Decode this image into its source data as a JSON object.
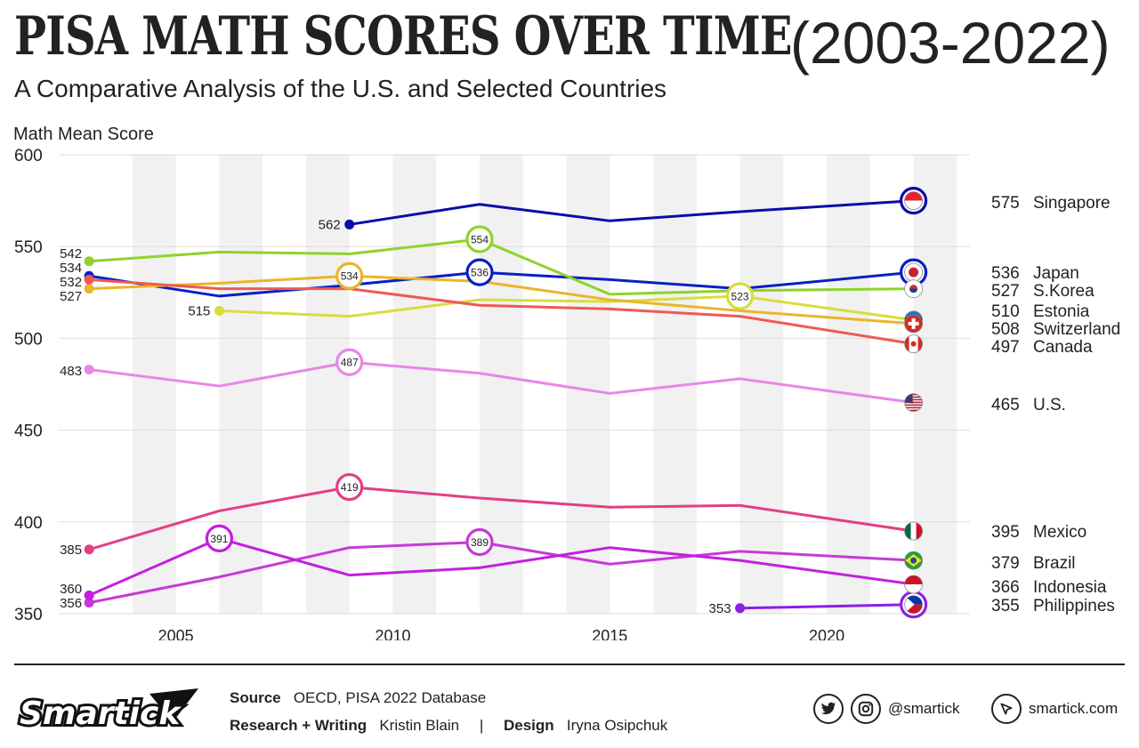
{
  "header": {
    "title": "PISA MATH SCORES OVER TIME",
    "title_years": "(2003-2022)",
    "subtitle": "A Comparative Analysis of the U.S. and Selected Countries"
  },
  "chart_data": {
    "type": "line",
    "ylabel": "Math Mean Score",
    "xlabel": "",
    "xlim": [
      2002.3,
      2023.3
    ],
    "ylim": [
      350,
      600
    ],
    "yticks": [
      350,
      400,
      450,
      500,
      550,
      600
    ],
    "xticks": [
      2005,
      2010,
      2015,
      2020
    ],
    "grid": true,
    "series": [
      {
        "name": "Singapore",
        "color": "#0c0ca8",
        "x": [
          2009,
          2012,
          2015,
          2018,
          2022
        ],
        "values": [
          562,
          573,
          564,
          569,
          575
        ],
        "start_label": "562",
        "end_label": "575",
        "highlights": [
          [
            2022,
            575,
            ""
          ]
        ],
        "flag": "singapore-flag-icon"
      },
      {
        "name": "Japan",
        "color": "#0a1fc4",
        "x": [
          2003,
          2006,
          2009,
          2012,
          2015,
          2018,
          2022
        ],
        "values": [
          534,
          523,
          529,
          536,
          532,
          527,
          536
        ],
        "start_label": "534",
        "end_label": "536",
        "highlights": [
          [
            2012,
            536,
            "536"
          ],
          [
            2022,
            536,
            ""
          ]
        ],
        "flag": "japan-flag-icon"
      },
      {
        "name": "S.Korea",
        "color": "#8fd22b",
        "x": [
          2003,
          2006,
          2009,
          2012,
          2015,
          2018,
          2022
        ],
        "values": [
          542,
          547,
          546,
          554,
          524,
          526,
          527
        ],
        "start_label": "542",
        "end_label": "527",
        "highlights": [
          [
            2012,
            554,
            "554"
          ]
        ],
        "flag": "south-korea-flag-icon"
      },
      {
        "name": "Estonia",
        "color": "#d6de3c",
        "x": [
          2006,
          2009,
          2012,
          2015,
          2018,
          2022
        ],
        "values": [
          515,
          512,
          521,
          520,
          523,
          510
        ],
        "start_label": "515",
        "end_label": "510",
        "highlights": [
          [
            2018,
            523,
            "523"
          ]
        ],
        "flag": "estonia-flag-icon"
      },
      {
        "name": "Switzerland",
        "color": "#eab52a",
        "x": [
          2003,
          2006,
          2009,
          2012,
          2015,
          2018,
          2022
        ],
        "values": [
          527,
          530,
          534,
          531,
          521,
          515,
          508
        ],
        "start_label": "527",
        "end_label": "508",
        "highlights": [
          [
            2009,
            534,
            "534"
          ]
        ],
        "flag": "switzerland-flag-icon"
      },
      {
        "name": "Canada",
        "color": "#ee5a55",
        "x": [
          2003,
          2006,
          2009,
          2012,
          2015,
          2018,
          2022
        ],
        "values": [
          532,
          527,
          527,
          518,
          516,
          512,
          497
        ],
        "start_label": "532",
        "end_label": "497",
        "highlights": [],
        "flag": "canada-flag-icon"
      },
      {
        "name": "U.S.",
        "color": "#e886e8",
        "x": [
          2003,
          2006,
          2009,
          2012,
          2015,
          2018,
          2022
        ],
        "values": [
          483,
          474,
          487,
          481,
          470,
          478,
          465
        ],
        "start_label": "483",
        "end_label": "465",
        "highlights": [
          [
            2009,
            487,
            "487"
          ]
        ],
        "flag": "usa-flag-icon"
      },
      {
        "name": "Mexico",
        "color": "#e23f86",
        "x": [
          2003,
          2006,
          2009,
          2012,
          2015,
          2018,
          2022
        ],
        "values": [
          385,
          406,
          419,
          413,
          408,
          409,
          395
        ],
        "start_label": "385",
        "end_label": "395",
        "highlights": [
          [
            2009,
            419,
            "419"
          ]
        ],
        "flag": "mexico-flag-icon"
      },
      {
        "name": "Brazil",
        "color": "#c63ad6",
        "x": [
          2003,
          2006,
          2009,
          2012,
          2015,
          2018,
          2022
        ],
        "values": [
          356,
          370,
          386,
          389,
          377,
          384,
          379
        ],
        "start_label": "356",
        "end_label": "379",
        "highlights": [
          [
            2012,
            389,
            "389"
          ]
        ],
        "flag": "brazil-flag-icon"
      },
      {
        "name": "Indonesia",
        "color": "#c41ee0",
        "x": [
          2003,
          2006,
          2009,
          2012,
          2015,
          2018,
          2022
        ],
        "values": [
          360,
          391,
          371,
          375,
          386,
          379,
          366
        ],
        "start_label": "360",
        "end_label": "366",
        "highlights": [
          [
            2006,
            391,
            "391"
          ]
        ],
        "flag": "indonesia-flag-icon"
      },
      {
        "name": "Philippines",
        "color": "#8a1fe8",
        "x": [
          2018,
          2022
        ],
        "values": [
          353,
          355
        ],
        "start_label": "353",
        "end_label": "355",
        "highlights": [
          [
            2022,
            355,
            ""
          ]
        ],
        "flag": "philippines-flag-icon"
      }
    ]
  },
  "footer": {
    "source_label": "Source",
    "source_value": "OECD, PISA 2022 Database",
    "research_label": "Research + Writing",
    "research_value": "Kristin Blain",
    "separator": "|",
    "design_label": "Design",
    "design_value": "Iryna Osipchuk",
    "logo_text": "Smartick",
    "social_handle": "@smartick",
    "website": "smartick.com"
  }
}
